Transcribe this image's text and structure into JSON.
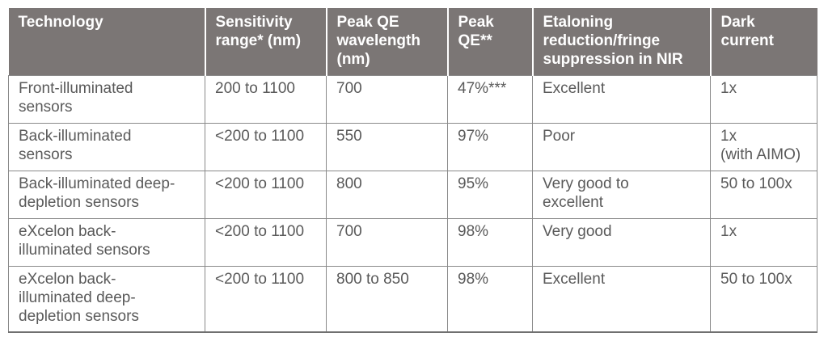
{
  "table": {
    "headers": [
      [
        "Technology"
      ],
      [
        "Sensitivity",
        "range* (nm)"
      ],
      [
        "Peak QE",
        "wavelength",
        "(nm)"
      ],
      [
        "Peak",
        "QE**"
      ],
      [
        "Etaloning",
        "reduction/fringe",
        "suppression in NIR"
      ],
      [
        "Dark",
        "current"
      ]
    ],
    "rows": [
      [
        [
          "Front-illuminated",
          "sensors"
        ],
        [
          "200 to 1100"
        ],
        [
          "700"
        ],
        [
          "47%***"
        ],
        [
          "Excellent"
        ],
        [
          "1x"
        ]
      ],
      [
        [
          "Back-illuminated",
          "sensors"
        ],
        [
          "<200 to 1100"
        ],
        [
          "550"
        ],
        [
          "97%"
        ],
        [
          "Poor"
        ],
        [
          "1x",
          "(with AIMO)"
        ]
      ],
      [
        [
          "Back-illuminated deep-",
          "depletion sensors"
        ],
        [
          "<200 to 1100"
        ],
        [
          "800"
        ],
        [
          "95%"
        ],
        [
          "Very good to",
          "excellent"
        ],
        [
          "50 to 100x"
        ]
      ],
      [
        [
          "eXcelon back-",
          "illuminated sensors"
        ],
        [
          "<200 to 1100"
        ],
        [
          "700"
        ],
        [
          "98%"
        ],
        [
          "Very good"
        ],
        [
          "1x"
        ]
      ],
      [
        [
          "eXcelon back-",
          "illuminated deep-",
          "depletion sensors"
        ],
        [
          "<200 to 1100"
        ],
        [
          "800 to 850"
        ],
        [
          "98%"
        ],
        [
          "Excellent"
        ],
        [
          "50 to 100x"
        ]
      ]
    ]
  }
}
